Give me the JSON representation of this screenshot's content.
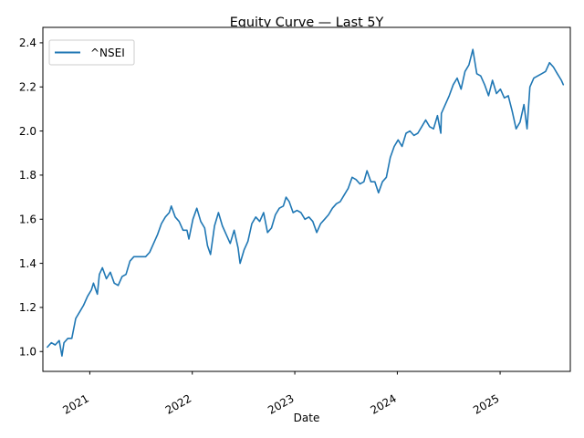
{
  "chart_data": {
    "type": "line",
    "title": "Equity Curve — Last 5Y",
    "xlabel": "Date",
    "ylabel": "",
    "x_ticks": [
      "2021",
      "2022",
      "2023",
      "2024",
      "2025"
    ],
    "y_ticks": [
      "1.0",
      "1.2",
      "1.4",
      "1.6",
      "1.8",
      "2.0",
      "2.2",
      "2.4"
    ],
    "xlim": [
      "2020-07-18",
      "2025-09-08"
    ],
    "ylim": [
      0.91,
      2.47
    ],
    "grid": false,
    "legend_position": "top-left",
    "series": [
      {
        "name": "^NSEI",
        "color": "#1f77b4",
        "points": [
          [
            "2020-08-03",
            1.02
          ],
          [
            "2020-08-17",
            1.04
          ],
          [
            "2020-08-31",
            1.03
          ],
          [
            "2020-09-14",
            1.05
          ],
          [
            "2020-09-24",
            0.98
          ],
          [
            "2020-10-01",
            1.04
          ],
          [
            "2020-10-15",
            1.06
          ],
          [
            "2020-10-29",
            1.06
          ],
          [
            "2020-11-12",
            1.15
          ],
          [
            "2020-11-26",
            1.18
          ],
          [
            "2020-12-10",
            1.21
          ],
          [
            "2020-12-24",
            1.25
          ],
          [
            "2021-01-07",
            1.28
          ],
          [
            "2021-01-14",
            1.31
          ],
          [
            "2021-01-28",
            1.26
          ],
          [
            "2021-02-04",
            1.35
          ],
          [
            "2021-02-15",
            1.38
          ],
          [
            "2021-03-01",
            1.33
          ],
          [
            "2021-03-15",
            1.36
          ],
          [
            "2021-03-29",
            1.31
          ],
          [
            "2021-04-12",
            1.3
          ],
          [
            "2021-04-26",
            1.34
          ],
          [
            "2021-05-10",
            1.35
          ],
          [
            "2021-05-24",
            1.41
          ],
          [
            "2021-06-07",
            1.43
          ],
          [
            "2021-06-21",
            1.43
          ],
          [
            "2021-07-05",
            1.43
          ],
          [
            "2021-07-19",
            1.43
          ],
          [
            "2021-08-02",
            1.45
          ],
          [
            "2021-08-16",
            1.49
          ],
          [
            "2021-08-30",
            1.53
          ],
          [
            "2021-09-13",
            1.58
          ],
          [
            "2021-09-27",
            1.61
          ],
          [
            "2021-10-11",
            1.63
          ],
          [
            "2021-10-18",
            1.66
          ],
          [
            "2021-11-01",
            1.61
          ],
          [
            "2021-11-15",
            1.59
          ],
          [
            "2021-11-29",
            1.55
          ],
          [
            "2021-12-13",
            1.55
          ],
          [
            "2021-12-20",
            1.51
          ],
          [
            "2022-01-03",
            1.6
          ],
          [
            "2022-01-17",
            1.65
          ],
          [
            "2022-01-31",
            1.59
          ],
          [
            "2022-02-14",
            1.56
          ],
          [
            "2022-02-24",
            1.48
          ],
          [
            "2022-03-07",
            1.44
          ],
          [
            "2022-03-21",
            1.57
          ],
          [
            "2022-04-04",
            1.63
          ],
          [
            "2022-04-18",
            1.57
          ],
          [
            "2022-05-02",
            1.53
          ],
          [
            "2022-05-16",
            1.49
          ],
          [
            "2022-05-30",
            1.55
          ],
          [
            "2022-06-13",
            1.47
          ],
          [
            "2022-06-20",
            1.4
          ],
          [
            "2022-07-04",
            1.46
          ],
          [
            "2022-07-18",
            1.5
          ],
          [
            "2022-08-01",
            1.58
          ],
          [
            "2022-08-15",
            1.61
          ],
          [
            "2022-08-29",
            1.59
          ],
          [
            "2022-09-12",
            1.63
          ],
          [
            "2022-09-26",
            1.54
          ],
          [
            "2022-10-10",
            1.56
          ],
          [
            "2022-10-24",
            1.62
          ],
          [
            "2022-11-07",
            1.65
          ],
          [
            "2022-11-21",
            1.66
          ],
          [
            "2022-12-01",
            1.7
          ],
          [
            "2022-12-12",
            1.68
          ],
          [
            "2022-12-26",
            1.63
          ],
          [
            "2023-01-09",
            1.64
          ],
          [
            "2023-01-23",
            1.63
          ],
          [
            "2023-02-06",
            1.6
          ],
          [
            "2023-02-20",
            1.61
          ],
          [
            "2023-03-06",
            1.59
          ],
          [
            "2023-03-20",
            1.54
          ],
          [
            "2023-04-03",
            1.58
          ],
          [
            "2023-04-17",
            1.6
          ],
          [
            "2023-05-01",
            1.62
          ],
          [
            "2023-05-15",
            1.65
          ],
          [
            "2023-05-29",
            1.67
          ],
          [
            "2023-06-12",
            1.68
          ],
          [
            "2023-06-26",
            1.71
          ],
          [
            "2023-07-10",
            1.74
          ],
          [
            "2023-07-24",
            1.79
          ],
          [
            "2023-08-07",
            1.78
          ],
          [
            "2023-08-21",
            1.76
          ],
          [
            "2023-09-04",
            1.77
          ],
          [
            "2023-09-15",
            1.82
          ],
          [
            "2023-09-29",
            1.77
          ],
          [
            "2023-10-13",
            1.77
          ],
          [
            "2023-10-26",
            1.72
          ],
          [
            "2023-11-09",
            1.77
          ],
          [
            "2023-11-23",
            1.79
          ],
          [
            "2023-12-07",
            1.88
          ],
          [
            "2023-12-21",
            1.93
          ],
          [
            "2024-01-04",
            1.96
          ],
          [
            "2024-01-18",
            1.93
          ],
          [
            "2024-02-01",
            1.99
          ],
          [
            "2024-02-15",
            2.0
          ],
          [
            "2024-02-29",
            1.98
          ],
          [
            "2024-03-14",
            1.99
          ],
          [
            "2024-03-28",
            2.02
          ],
          [
            "2024-04-11",
            2.05
          ],
          [
            "2024-04-25",
            2.02
          ],
          [
            "2024-05-09",
            2.01
          ],
          [
            "2024-05-23",
            2.07
          ],
          [
            "2024-06-04",
            1.99
          ],
          [
            "2024-06-06",
            2.08
          ],
          [
            "2024-06-20",
            2.12
          ],
          [
            "2024-07-04",
            2.16
          ],
          [
            "2024-07-18",
            2.21
          ],
          [
            "2024-08-01",
            2.24
          ],
          [
            "2024-08-15",
            2.19
          ],
          [
            "2024-08-29",
            2.27
          ],
          [
            "2024-09-12",
            2.3
          ],
          [
            "2024-09-26",
            2.37
          ],
          [
            "2024-10-10",
            2.26
          ],
          [
            "2024-10-24",
            2.25
          ],
          [
            "2024-11-07",
            2.21
          ],
          [
            "2024-11-21",
            2.16
          ],
          [
            "2024-12-05",
            2.23
          ],
          [
            "2024-12-19",
            2.17
          ],
          [
            "2025-01-02",
            2.19
          ],
          [
            "2025-01-16",
            2.15
          ],
          [
            "2025-01-30",
            2.16
          ],
          [
            "2025-02-13",
            2.09
          ],
          [
            "2025-02-27",
            2.01
          ],
          [
            "2025-03-13",
            2.04
          ],
          [
            "2025-03-27",
            2.12
          ],
          [
            "2025-04-07",
            2.01
          ],
          [
            "2025-04-17",
            2.2
          ],
          [
            "2025-05-01",
            2.24
          ],
          [
            "2025-05-15",
            2.25
          ],
          [
            "2025-05-29",
            2.26
          ],
          [
            "2025-06-12",
            2.27
          ],
          [
            "2025-06-26",
            2.31
          ],
          [
            "2025-07-10",
            2.29
          ],
          [
            "2025-07-24",
            2.26
          ],
          [
            "2025-08-07",
            2.23
          ],
          [
            "2025-08-14",
            2.21
          ]
        ]
      }
    ]
  }
}
